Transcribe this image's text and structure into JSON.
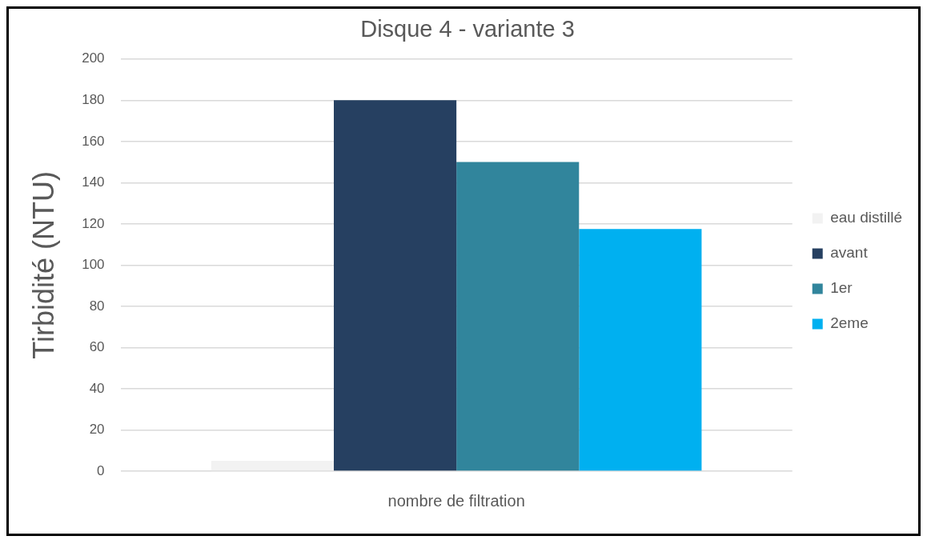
{
  "chart_data": {
    "type": "bar",
    "title": "Disque 4 - variante 3",
    "ylabel": "Tirbidité (NTU)",
    "categories": [
      "nombre de filtration"
    ],
    "series": [
      {
        "name": "eau distillé",
        "color": "#f2f2f2",
        "values": [
          5
        ]
      },
      {
        "name": "avant",
        "color": "#264061",
        "values": [
          180
        ]
      },
      {
        "name": "1er",
        "color": "#31859c",
        "values": [
          150
        ]
      },
      {
        "name": "2eme",
        "color": "#00b0f0",
        "values": [
          117.5
        ]
      }
    ],
    "ylim": [
      0,
      200
    ],
    "yticks": [
      0,
      20,
      40,
      60,
      80,
      100,
      120,
      140,
      160,
      180,
      200
    ],
    "grid": "y",
    "legend": "right"
  }
}
